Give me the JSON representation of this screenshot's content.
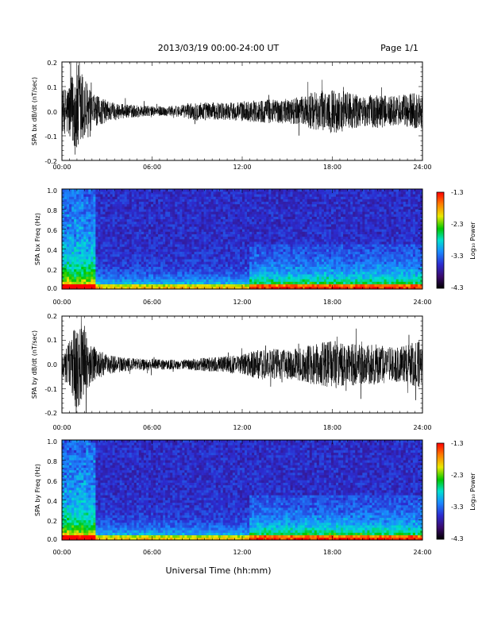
{
  "header": {
    "date_range": "2013/03/19  00:00-24:00 UT",
    "page": "Page 1/1"
  },
  "footer": {
    "xlabel": "Universal Time (hh:mm)"
  },
  "colorbar": {
    "label": "Log₁₀ Power",
    "ticks": [
      "-1.3",
      "-2.3",
      "-3.3",
      "-4.3"
    ],
    "range": [
      -4.3,
      -1.3
    ],
    "colors": [
      "#000000",
      "#3a0a6a",
      "#2c2cd0",
      "#1a8aff",
      "#00e0d0",
      "#00c800",
      "#e8e800",
      "#ff7a00",
      "#ff0000"
    ]
  },
  "chart_data": [
    {
      "type": "line",
      "ylabel": "SPA bx dB/dt (nT/sec)",
      "xlim": [
        0,
        24
      ],
      "ylim": [
        -0.2,
        0.2
      ],
      "x_ticks": [
        "00:00",
        "06:00",
        "12:00",
        "18:00",
        "24:00"
      ],
      "y_ticks": [
        "0.2",
        "0.1",
        "0.0",
        "-0.1",
        "-0.2"
      ],
      "envelope_hours": [
        0,
        0.5,
        1.0,
        1.5,
        2.0,
        3,
        4,
        5,
        6,
        7,
        8,
        9,
        10,
        11,
        12,
        13,
        14,
        15,
        16,
        17,
        18,
        19,
        20,
        21,
        22,
        23,
        24
      ],
      "envelope_amplitude": [
        0.08,
        0.12,
        0.2,
        0.15,
        0.07,
        0.045,
        0.03,
        0.025,
        0.02,
        0.02,
        0.025,
        0.04,
        0.035,
        0.035,
        0.04,
        0.045,
        0.05,
        0.05,
        0.06,
        0.08,
        0.09,
        0.08,
        0.06,
        0.07,
        0.06,
        0.07,
        0.08
      ]
    },
    {
      "type": "heatmap",
      "ylabel": "SPA bx Freq (Hz)",
      "xlim": [
        0,
        24
      ],
      "ylim": [
        0,
        1.0
      ],
      "x_ticks": [
        "00:00",
        "06:00",
        "12:00",
        "18:00",
        "24:00"
      ],
      "y_ticks": [
        "1.0",
        "0.8",
        "0.6",
        "0.4",
        "0.2",
        "0.0"
      ]
    },
    {
      "type": "line",
      "ylabel": "SPA by dB/dt (nT/sec)",
      "xlim": [
        0,
        24
      ],
      "ylim": [
        -0.2,
        0.2
      ],
      "x_ticks": [
        "00:00",
        "06:00",
        "12:00",
        "18:00",
        "24:00"
      ],
      "y_ticks": [
        "0.2",
        "0.1",
        "0.0",
        "-0.1",
        "-0.2"
      ],
      "envelope_hours": [
        0,
        0.5,
        1.0,
        1.5,
        2.0,
        3,
        4,
        5,
        6,
        7,
        8,
        9,
        10,
        11,
        12,
        13,
        14,
        15,
        16,
        17,
        18,
        19,
        20,
        21,
        22,
        23,
        24
      ],
      "envelope_amplitude": [
        0.06,
        0.1,
        0.2,
        0.16,
        0.08,
        0.04,
        0.03,
        0.025,
        0.025,
        0.02,
        0.02,
        0.025,
        0.03,
        0.035,
        0.04,
        0.06,
        0.065,
        0.06,
        0.07,
        0.09,
        0.1,
        0.09,
        0.08,
        0.085,
        0.07,
        0.08,
        0.1
      ]
    },
    {
      "type": "heatmap",
      "ylabel": "SPA by Freq (Hz)",
      "xlim": [
        0,
        24
      ],
      "ylim": [
        0,
        1.0
      ],
      "x_ticks": [
        "00:00",
        "06:00",
        "12:00",
        "18:00",
        "24:00"
      ],
      "y_ticks": [
        "1.0",
        "0.8",
        "0.6",
        "0.4",
        "0.2",
        "0.0"
      ]
    }
  ]
}
